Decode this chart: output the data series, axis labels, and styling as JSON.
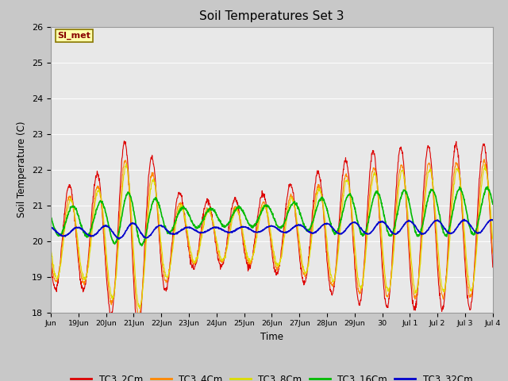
{
  "title": "Soil Temperatures Set 3",
  "ylabel": "Soil Temperature (C)",
  "xlabel": "Time",
  "ylim": [
    18.0,
    26.0
  ],
  "yticks": [
    18.0,
    19.0,
    20.0,
    21.0,
    22.0,
    23.0,
    24.0,
    25.0,
    26.0
  ],
  "plot_bg_color": "#e8e8e8",
  "fig_bg_color": "#c8c8c8",
  "series_colors": {
    "TC3_2Cm": "#dd0000",
    "TC3_4Cm": "#ff8800",
    "TC3_8Cm": "#dddd00",
    "TC3_16Cm": "#00bb00",
    "TC3_32Cm": "#0000cc"
  },
  "annotation_text": "SI_met",
  "annotation_color": "#880000",
  "annotation_bg": "#ffffaa",
  "annotation_border": "#887700",
  "xtick_positions": [
    0,
    1,
    2,
    3,
    4,
    5,
    6,
    7,
    8,
    9,
    10,
    11,
    12,
    13,
    14,
    15,
    16
  ],
  "xtick_labels": [
    "Jun",
    "19Jun",
    "20Jun",
    "21Jun",
    "22Jun",
    "23Jun",
    "24Jun",
    "25Jun",
    "26Jun",
    "27Jun",
    "28Jun",
    "29Jun",
    "30",
    "Jul 1",
    "Jul 2",
    "Jul 3",
    "Jul 4"
  ]
}
